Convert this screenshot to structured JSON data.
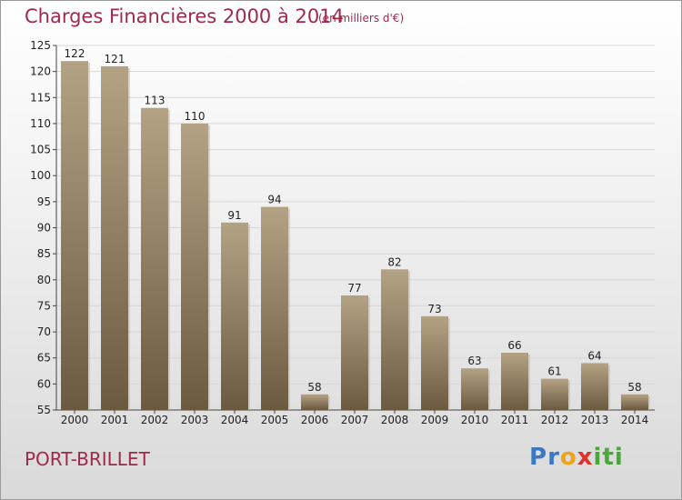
{
  "title": "Charges Financières 2000 à 2014",
  "subtitle": "(en milliers d'€)",
  "place": "PORT-BRILLET",
  "brand": {
    "letters": [
      "P",
      "r",
      "o",
      "x",
      "i",
      "t",
      "i"
    ],
    "colors": [
      "#3a78c2",
      "#3a78c2",
      "#f0a21a",
      "#e0322a",
      "#4aa83b",
      "#4aa83b",
      "#4aa83b"
    ]
  },
  "colors": {
    "title": "#9d2a4a",
    "bar_light": "#b4a284",
    "bar_dark": "#6b5a40"
  },
  "chart_data": {
    "type": "bar",
    "title": "Charges Financières 2000 à 2014",
    "subtitle": "(en milliers d'€)",
    "categories": [
      "2000",
      "2001",
      "2002",
      "2003",
      "2004",
      "2005",
      "2006",
      "2007",
      "2008",
      "2009",
      "2010",
      "2011",
      "2012",
      "2013",
      "2014"
    ],
    "values": [
      122,
      121,
      113,
      110,
      91,
      94,
      58,
      77,
      82,
      73,
      63,
      66,
      61,
      64,
      58
    ],
    "ylim": [
      55,
      125
    ],
    "yticks": [
      55,
      60,
      65,
      70,
      75,
      80,
      85,
      90,
      95,
      100,
      105,
      110,
      115,
      120,
      125
    ],
    "grid": true,
    "legend": "none"
  }
}
